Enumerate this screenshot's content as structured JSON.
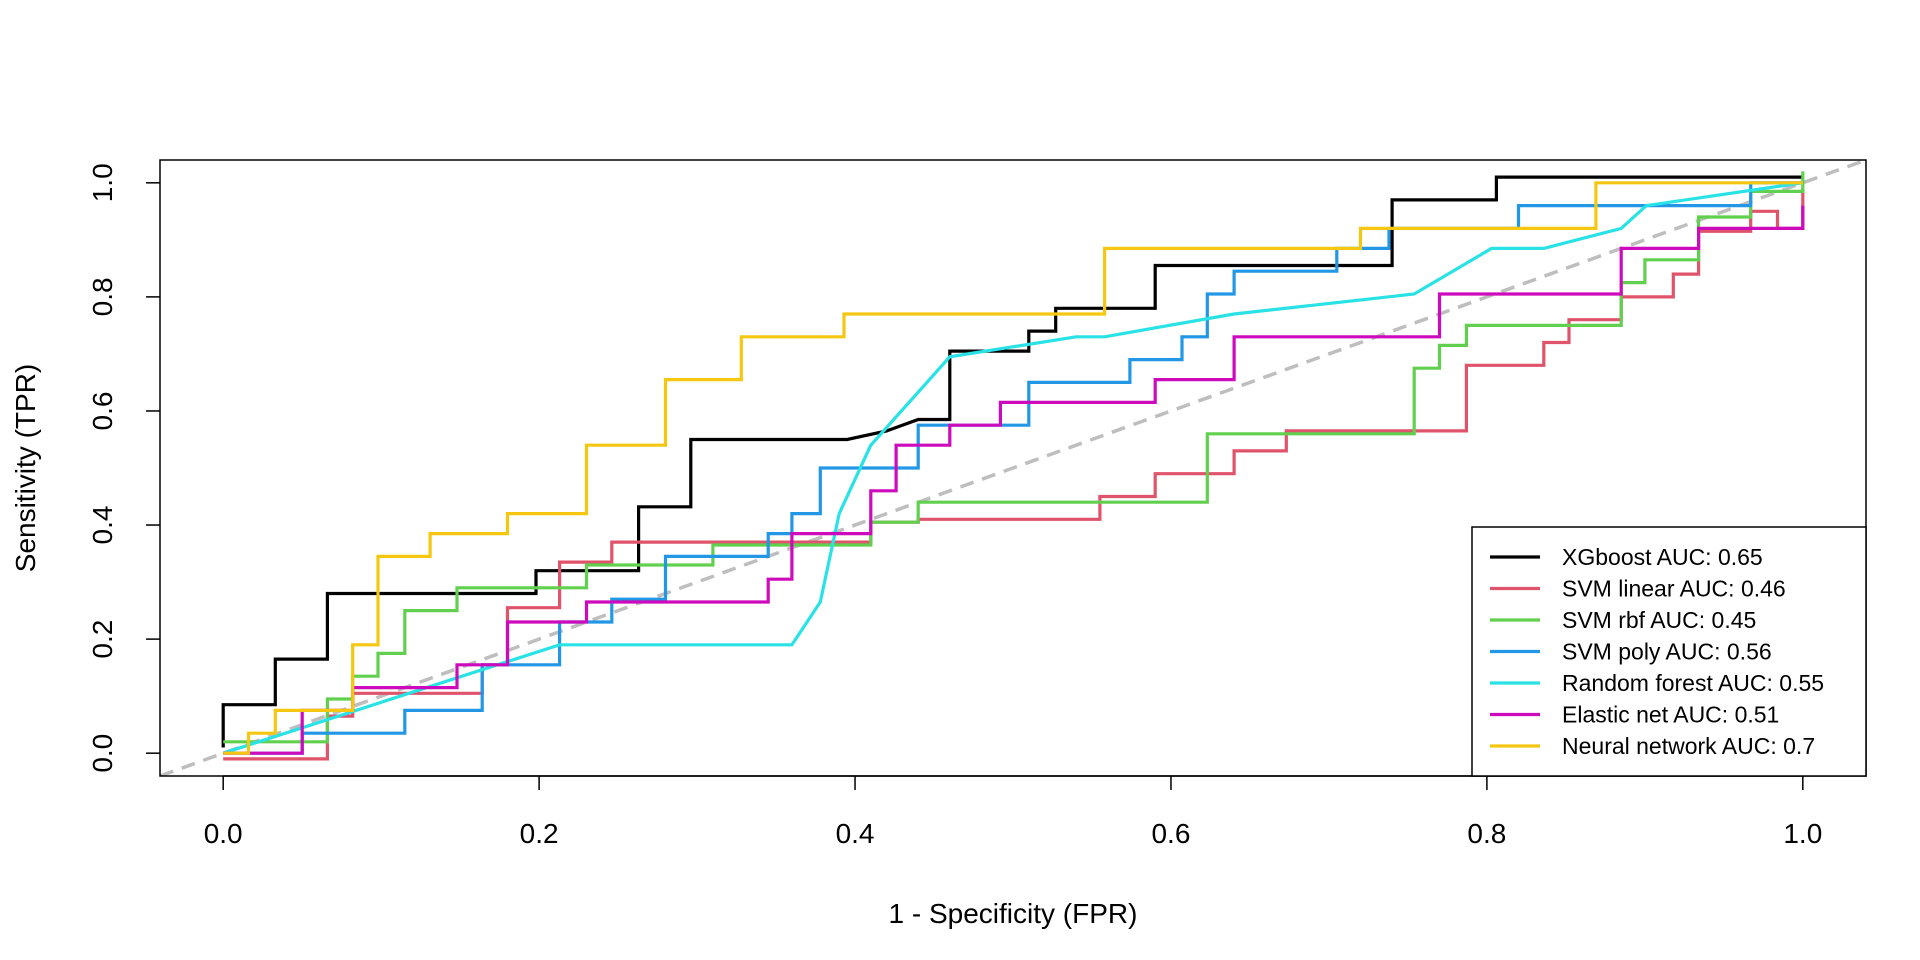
{
  "chart_data": {
    "type": "line",
    "title": "",
    "xlabel": "1 - Specificity (FPR)",
    "ylabel": "Sensitivity (TPR)",
    "xlim": [
      -0.04,
      1.04
    ],
    "ylim": [
      -0.04,
      1.04
    ],
    "xticks": [
      0.0,
      0.2,
      0.4,
      0.6,
      0.8,
      1.0
    ],
    "yticks": [
      0.0,
      0.2,
      0.4,
      0.6,
      0.8,
      1.0
    ],
    "xtick_labels": [
      "0.0",
      "0.2",
      "0.4",
      "0.6",
      "0.8",
      "1.0"
    ],
    "ytick_labels": [
      "0.0",
      "0.2",
      "0.4",
      "0.6",
      "0.8",
      "1.0"
    ],
    "grid": false,
    "legend_position": "bottom-right",
    "reference_line": {
      "x": [
        -0.04,
        1.04
      ],
      "y": [
        -0.04,
        1.04
      ],
      "color": "#bebebe",
      "style": "dashed"
    },
    "series": [
      {
        "name": "XGboost AUC: 0.65",
        "color": "#000000",
        "x": [
          0,
          0,
          0.033,
          0.033,
          0.066,
          0.066,
          0.198,
          0.198,
          0.263,
          0.263,
          0.296,
          0.296,
          0.395,
          0.42,
          0.44,
          0.46,
          0.46,
          0.51,
          0.51,
          0.527,
          0.527,
          0.59,
          0.59,
          0.74,
          0.74,
          0.806,
          0.806,
          1.0
        ],
        "y": [
          0.01,
          0.085,
          0.085,
          0.165,
          0.165,
          0.28,
          0.28,
          0.32,
          0.32,
          0.432,
          0.432,
          0.55,
          0.55,
          0.565,
          0.585,
          0.585,
          0.705,
          0.705,
          0.74,
          0.74,
          0.78,
          0.78,
          0.855,
          0.855,
          0.97,
          0.97,
          1.01,
          1.01
        ]
      },
      {
        "name": "SVM linear AUC: 0.46",
        "color": "#df536b",
        "x": [
          0,
          0.066,
          0.066,
          0.082,
          0.082,
          0.164,
          0.164,
          0.18,
          0.18,
          0.18,
          0.18,
          0.213,
          0.213,
          0.246,
          0.246,
          0.41,
          0.41,
          0.44,
          0.44,
          0.555,
          0.555,
          0.59,
          0.59,
          0.64,
          0.64,
          0.673,
          0.673,
          0.787,
          0.787,
          0.836,
          0.836,
          0.852,
          0.852,
          0.885,
          0.885,
          0.918,
          0.918,
          0.934,
          0.934,
          0.967,
          0.967,
          0.984,
          0.984,
          1.0,
          1.0
        ],
        "y": [
          -0.01,
          -0.01,
          0.065,
          0.065,
          0.105,
          0.105,
          0.155,
          0.155,
          0.18,
          0.18,
          0.255,
          0.255,
          0.335,
          0.335,
          0.37,
          0.37,
          0.405,
          0.405,
          0.41,
          0.41,
          0.45,
          0.45,
          0.49,
          0.49,
          0.53,
          0.53,
          0.565,
          0.565,
          0.68,
          0.68,
          0.72,
          0.72,
          0.76,
          0.76,
          0.8,
          0.8,
          0.84,
          0.84,
          0.915,
          0.915,
          0.95,
          0.95,
          0.92,
          0.92,
          0.99
        ]
      },
      {
        "name": "SVM rbf AUC: 0.45",
        "color": "#61d04f",
        "x": [
          0,
          0.066,
          0.066,
          0.082,
          0.082,
          0.098,
          0.098,
          0.115,
          0.115,
          0.148,
          0.148,
          0.23,
          0.23,
          0.31,
          0.31,
          0.41,
          0.41,
          0.44,
          0.44,
          0.623,
          0.623,
          0.754,
          0.754,
          0.77,
          0.77,
          0.787,
          0.787,
          0.885,
          0.885,
          0.9,
          0.9,
          0.934,
          0.934,
          0.967,
          0.967,
          1.0,
          1.0
        ],
        "y": [
          0.02,
          0.02,
          0.095,
          0.095,
          0.135,
          0.135,
          0.175,
          0.175,
          0.25,
          0.25,
          0.29,
          0.29,
          0.33,
          0.33,
          0.365,
          0.365,
          0.405,
          0.405,
          0.44,
          0.44,
          0.56,
          0.56,
          0.675,
          0.675,
          0.715,
          0.715,
          0.75,
          0.75,
          0.825,
          0.825,
          0.865,
          0.865,
          0.94,
          0.94,
          0.985,
          0.985,
          1.02
        ]
      },
      {
        "name": "SVM poly AUC: 0.56",
        "color": "#2297e6",
        "x": [
          0,
          0.05,
          0.05,
          0.115,
          0.115,
          0.164,
          0.164,
          0.213,
          0.213,
          0.246,
          0.246,
          0.28,
          0.28,
          0.345,
          0.345,
          0.36,
          0.36,
          0.378,
          0.378,
          0.44,
          0.44,
          0.51,
          0.51,
          0.574,
          0.574,
          0.607,
          0.607,
          0.623,
          0.623,
          0.64,
          0.64,
          0.705,
          0.705,
          0.738,
          0.738,
          0.82,
          0.82,
          0.967,
          0.967,
          1.0
        ],
        "y": [
          0,
          0,
          0.035,
          0.035,
          0.075,
          0.075,
          0.155,
          0.155,
          0.23,
          0.23,
          0.27,
          0.27,
          0.345,
          0.345,
          0.385,
          0.385,
          0.42,
          0.42,
          0.5,
          0.5,
          0.575,
          0.575,
          0.65,
          0.65,
          0.69,
          0.69,
          0.73,
          0.73,
          0.805,
          0.805,
          0.845,
          0.845,
          0.885,
          0.885,
          0.92,
          0.92,
          0.96,
          0.96,
          1.0,
          1.0
        ]
      },
      {
        "name": "Random forest AUC: 0.55",
        "color": "#28e2e5",
        "x": [
          0,
          0.213,
          0.36,
          0.378,
          0.39,
          0.41,
          0.46,
          0.54,
          0.558,
          0.64,
          0.754,
          0.803,
          0.836,
          0.885,
          0.901,
          1.0
        ],
        "y": [
          0,
          0.19,
          0.19,
          0.265,
          0.42,
          0.54,
          0.695,
          0.73,
          0.73,
          0.77,
          0.805,
          0.885,
          0.885,
          0.92,
          0.96,
          1.0
        ]
      },
      {
        "name": "Elastic net AUC: 0.51",
        "color": "#cd0bbc",
        "x": [
          0,
          0.05,
          0.05,
          0.082,
          0.082,
          0.098,
          0.098,
          0.148,
          0.148,
          0.18,
          0.18,
          0.23,
          0.23,
          0.345,
          0.345,
          0.36,
          0.36,
          0.41,
          0.41,
          0.426,
          0.426,
          0.46,
          0.46,
          0.492,
          0.492,
          0.59,
          0.59,
          0.64,
          0.64,
          0.77,
          0.77,
          0.885,
          0.885,
          0.934,
          0.934,
          1.0,
          1.0
        ],
        "y": [
          0,
          0,
          0.075,
          0.075,
          0.115,
          0.115,
          0.115,
          0.115,
          0.155,
          0.155,
          0.23,
          0.23,
          0.265,
          0.265,
          0.305,
          0.305,
          0.385,
          0.385,
          0.46,
          0.46,
          0.54,
          0.54,
          0.575,
          0.575,
          0.615,
          0.615,
          0.655,
          0.655,
          0.73,
          0.73,
          0.805,
          0.805,
          0.885,
          0.885,
          0.92,
          0.92,
          0.96
        ]
      },
      {
        "name": "Neural network AUC: 0.7",
        "color": "#f5c710",
        "x": [
          0,
          0.016,
          0.016,
          0.033,
          0.033,
          0.082,
          0.082,
          0.098,
          0.098,
          0.131,
          0.131,
          0.18,
          0.18,
          0.23,
          0.23,
          0.28,
          0.28,
          0.328,
          0.328,
          0.393,
          0.393,
          0.558,
          0.558,
          0.72,
          0.72,
          0.869,
          0.869,
          1.0
        ],
        "y": [
          0,
          0,
          0.035,
          0.035,
          0.075,
          0.075,
          0.19,
          0.19,
          0.345,
          0.345,
          0.385,
          0.385,
          0.42,
          0.42,
          0.54,
          0.54,
          0.655,
          0.655,
          0.73,
          0.73,
          0.77,
          0.77,
          0.885,
          0.885,
          0.92,
          0.92,
          1.0,
          1.0
        ]
      }
    ]
  }
}
